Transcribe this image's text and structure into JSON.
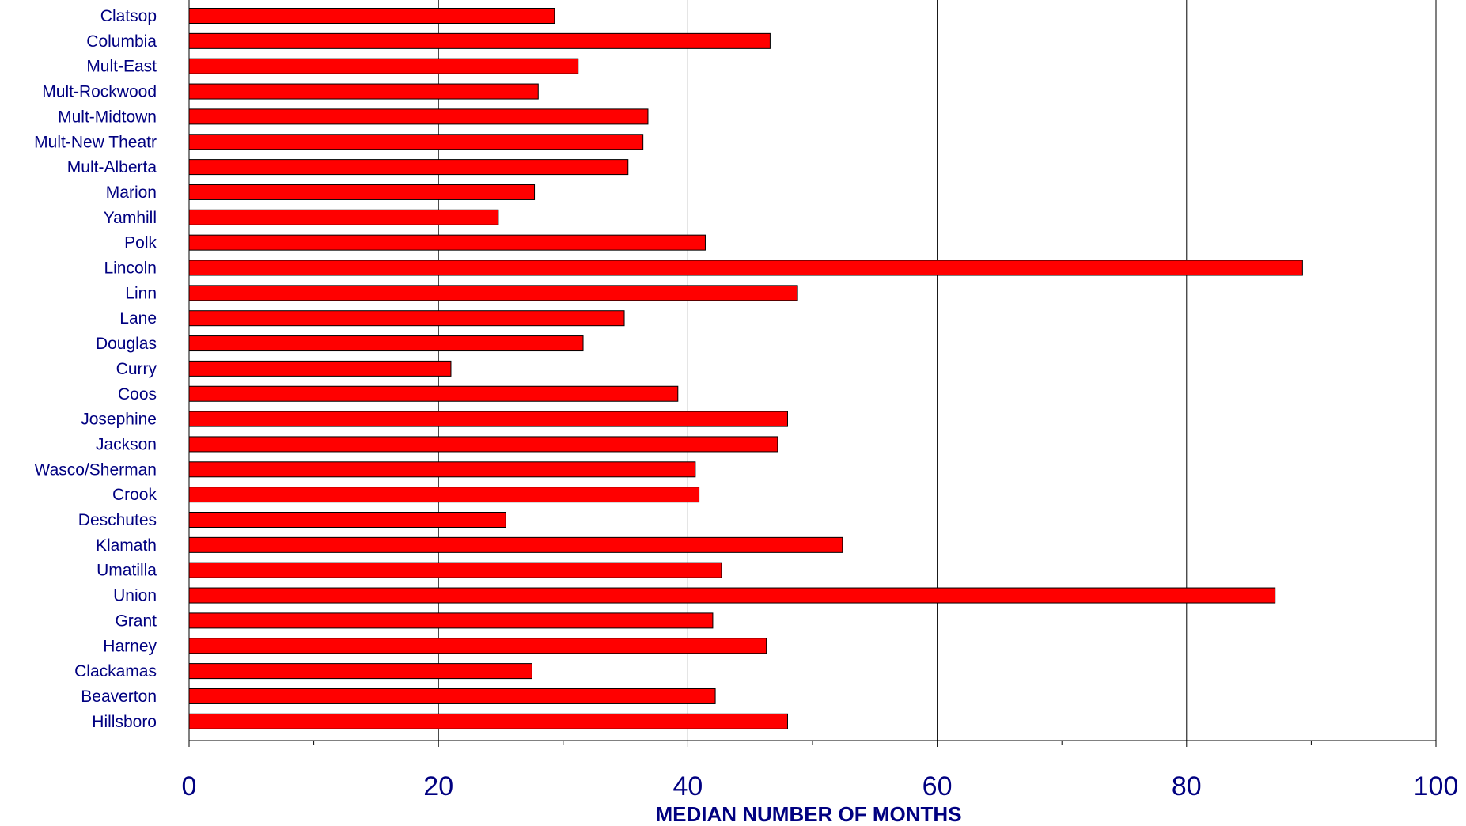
{
  "chart_data": {
    "type": "bar",
    "orientation": "horizontal",
    "title": "",
    "xlabel": "MEDIAN NUMBER OF MONTHS",
    "ylabel": "",
    "xlim": [
      0,
      100
    ],
    "x_ticks": [
      "0",
      "20",
      "40",
      "60",
      "80",
      "100"
    ],
    "grid": "vertical major gridlines at each labeled tick",
    "legend": "none",
    "categories": [
      "Clatsop",
      "Columbia",
      "Mult-East",
      "Mult-Rockwood",
      "Mult-Midtown",
      "Mult-New Theatr",
      "Mult-Alberta",
      "Marion",
      "Yamhill",
      "Polk",
      "Lincoln",
      "Linn",
      "Lane",
      "Douglas",
      "Curry",
      "Coos",
      "Josephine",
      "Jackson",
      "Wasco/Sherman",
      "Crook",
      "Deschutes",
      "Klamath",
      "Umatilla",
      "Union",
      "Grant",
      "Harney",
      "Clackamas",
      "Beaverton",
      "Hillsboro"
    ],
    "values": [
      29.3,
      46.6,
      31.2,
      28.0,
      36.8,
      36.4,
      35.2,
      27.7,
      24.8,
      41.4,
      89.3,
      48.8,
      34.9,
      31.6,
      21.0,
      39.2,
      48.0,
      47.2,
      40.6,
      40.9,
      25.4,
      52.4,
      42.7,
      87.1,
      42.0,
      46.3,
      27.5,
      42.2,
      48.0
    ]
  },
  "colors": {
    "bar_fill": "#ff0000",
    "bar_stroke": "#000000",
    "text": "#000080",
    "grid": "#000000"
  }
}
